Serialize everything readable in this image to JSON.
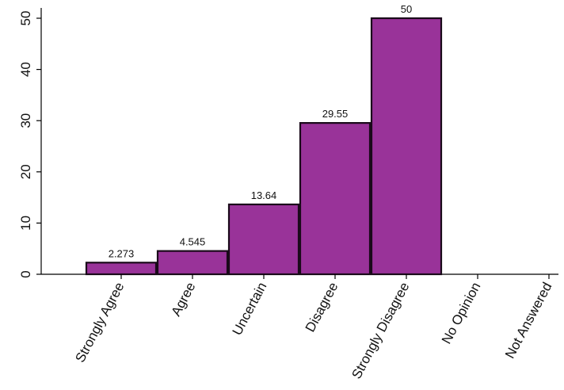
{
  "chart_data": {
    "type": "bar",
    "categories": [
      "Strongly Agree",
      "Agree",
      "Uncertain",
      "Disagree",
      "Strongly Disagree",
      "No Opinion",
      "Not Answered"
    ],
    "values": [
      2.273,
      4.545,
      13.64,
      29.55,
      50,
      0,
      0
    ],
    "data_labels": [
      "2.273",
      "4.545",
      "13.64",
      "29.55",
      "50",
      "",
      ""
    ],
    "yticks": [
      0,
      10,
      20,
      30,
      40,
      50
    ],
    "ytick_labels": [
      "0",
      "10",
      "20",
      "30",
      "40",
      "50"
    ],
    "ylim": [
      0,
      50
    ],
    "title": "",
    "xlabel": "",
    "ylabel": "",
    "grid": false,
    "bar_color": "#993399",
    "bar_edge_color": "#1a0a1a"
  }
}
